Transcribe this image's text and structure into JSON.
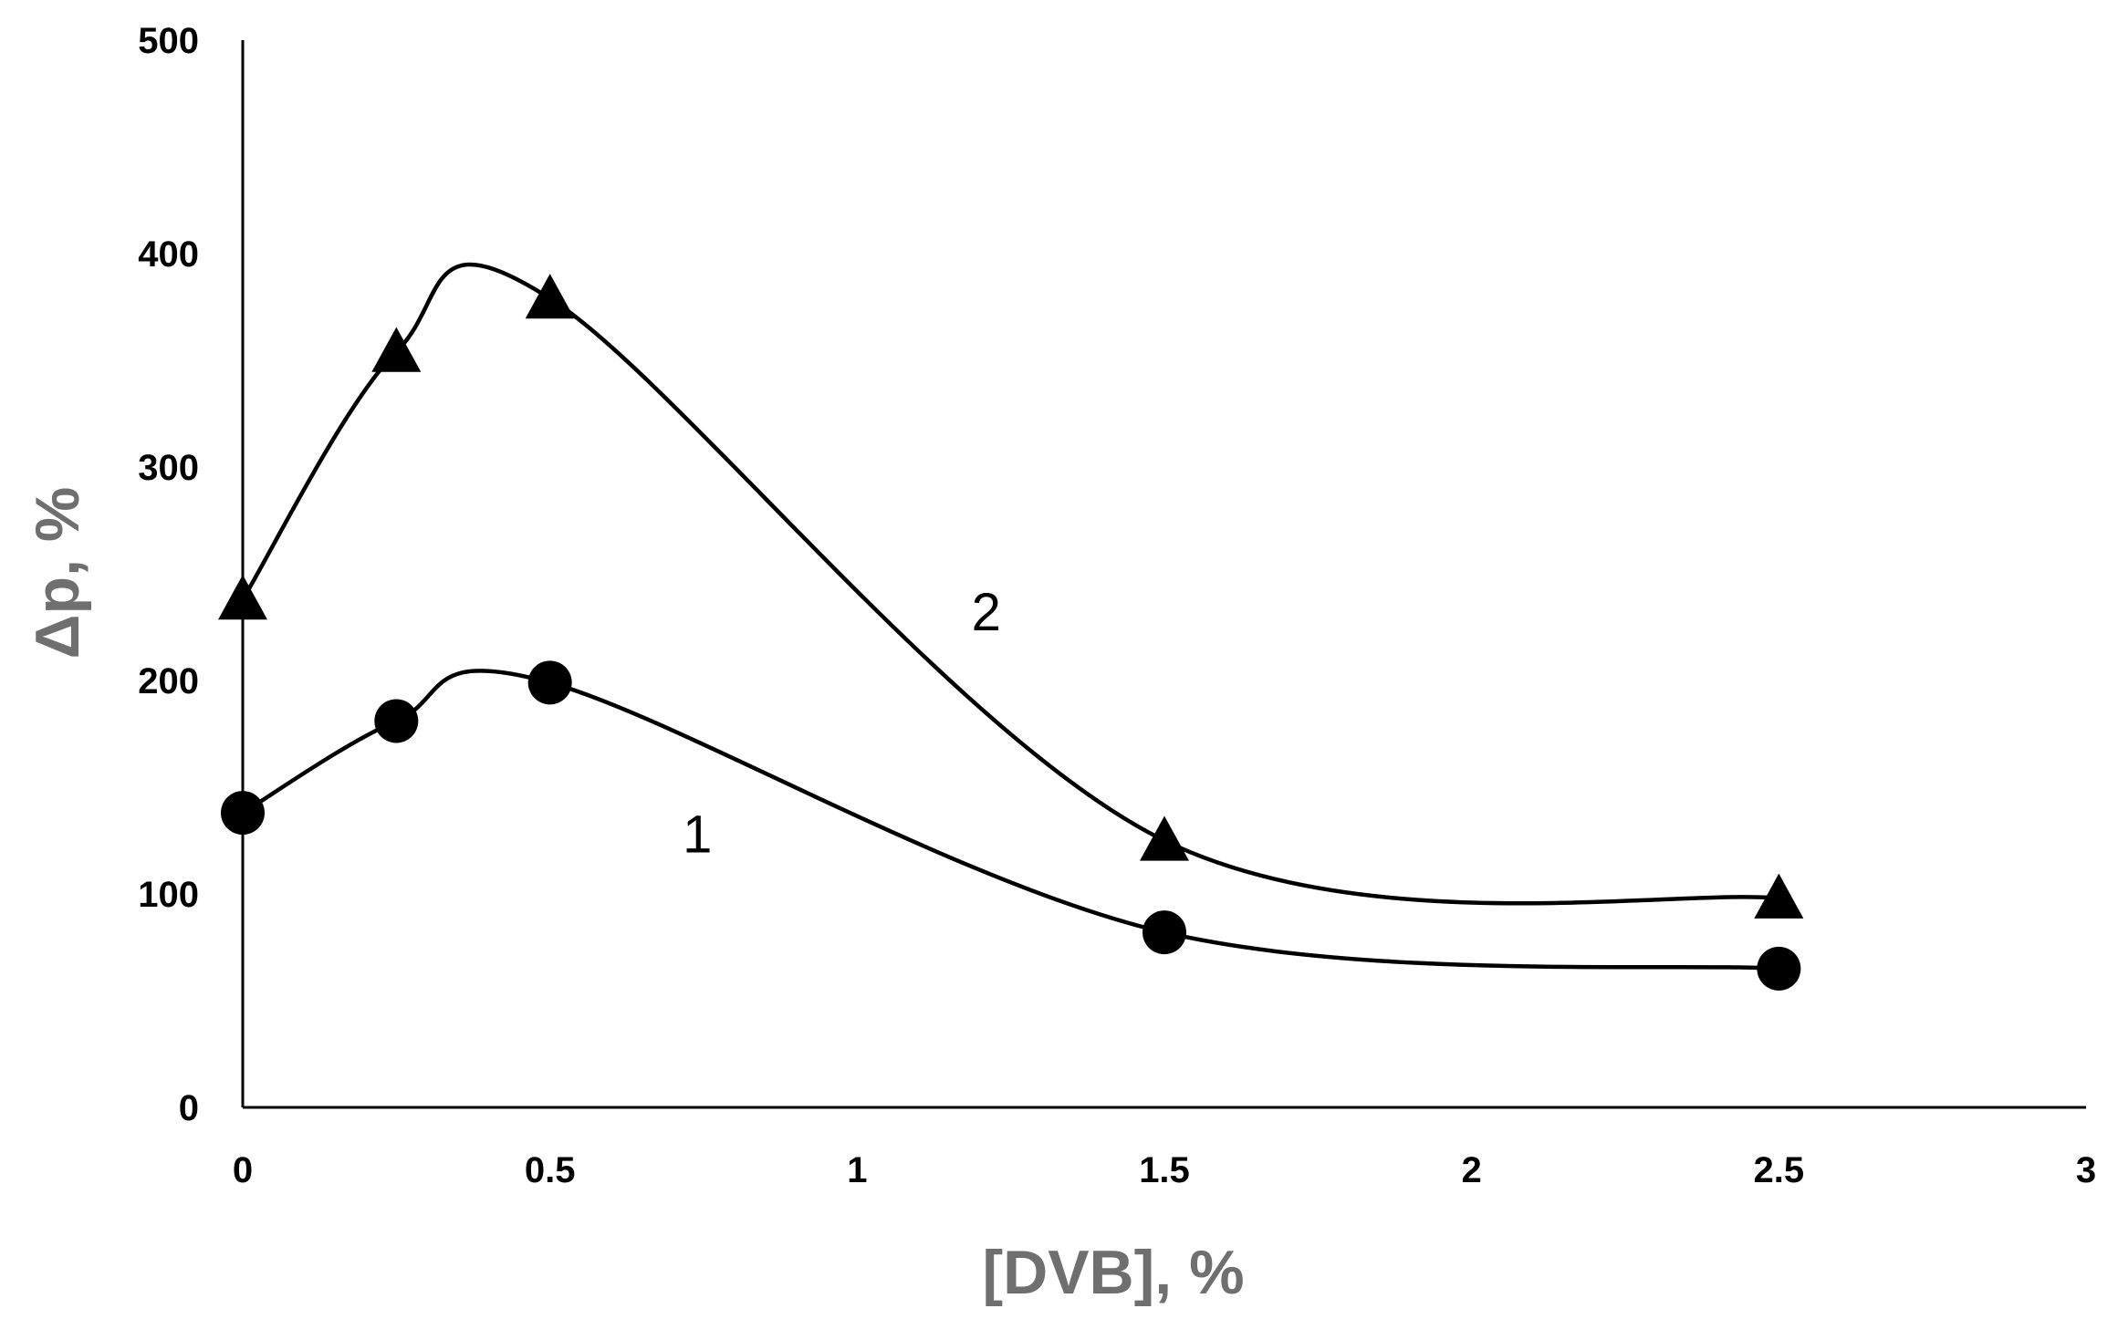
{
  "chart_data": {
    "type": "line",
    "title": "",
    "xlabel": "[DVB], %",
    "ylabel": "Δp, %",
    "xlim": [
      0,
      3
    ],
    "ylim": [
      0,
      500
    ],
    "xticks": [
      0,
      0.5,
      1,
      1.5,
      2,
      2.5,
      3
    ],
    "xtick_labels": [
      "0",
      "0.5",
      "1",
      "1.5",
      "2",
      "2.5",
      "3"
    ],
    "yticks": [
      0,
      100,
      200,
      300,
      400,
      500
    ],
    "ytick_labels": [
      "0",
      "100",
      "200",
      "300",
      "400",
      "500"
    ],
    "grid": false,
    "smooth": true,
    "series": [
      {
        "name": "1",
        "marker": "circle",
        "color": "#000000",
        "x": [
          0,
          0.25,
          0.5,
          1.5,
          2.5
        ],
        "values": [
          138,
          181,
          199,
          82,
          65
        ],
        "label_anchor": [
          0.74,
          128
        ]
      },
      {
        "name": "2",
        "marker": "triangle",
        "color": "#000000",
        "x": [
          0,
          0.25,
          0.5,
          1.5,
          2.5
        ],
        "values": [
          238,
          354,
          379,
          125,
          98
        ],
        "label_anchor": [
          1.21,
          232
        ]
      }
    ]
  }
}
